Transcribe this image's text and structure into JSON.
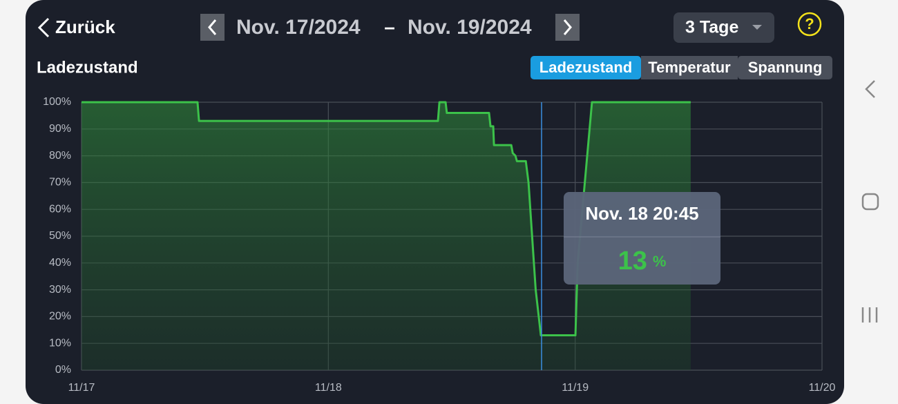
{
  "header": {
    "back": "Zurück",
    "date_from": "Nov. 17/2024",
    "separator": "–",
    "date_to": "Nov. 19/2024",
    "range": "3 Tage",
    "help": "?"
  },
  "tabs": [
    {
      "label": "Ladezustand",
      "active": true
    },
    {
      "label": "Temperatur",
      "active": false
    },
    {
      "label": "Spannung",
      "active": false
    }
  ],
  "chart_data": {
    "type": "area",
    "title": "Ladezustand",
    "color": "#3cc24a",
    "grid": true,
    "x": [
      0,
      0.47,
      0.476,
      1.444,
      1.45,
      1.475,
      1.48,
      1.651,
      1.657,
      1.668,
      1.671,
      1.741,
      1.747,
      1.758,
      1.764,
      1.8,
      1.811,
      1.84,
      1.861,
      2.001,
      2.01,
      2.068,
      2.468
    ],
    "values": [
      100,
      100,
      93,
      93,
      100,
      100,
      96,
      96,
      91,
      91,
      84,
      84,
      81,
      80,
      78,
      78,
      70,
      30,
      13,
      13,
      40,
      100,
      100
    ],
    "xlim": [
      0,
      3
    ],
    "xticks": [
      {
        "value": 0,
        "label": "11/17"
      },
      {
        "value": 1,
        "label": "11/18"
      },
      {
        "value": 2,
        "label": "11/19"
      },
      {
        "value": 3,
        "label": "11/20"
      }
    ],
    "ylim": [
      0,
      100
    ],
    "yticks": [
      {
        "value": 0,
        "label": "0%"
      },
      {
        "value": 10,
        "label": "10%"
      },
      {
        "value": 20,
        "label": "20%"
      },
      {
        "value": 30,
        "label": "30%"
      },
      {
        "value": 40,
        "label": "40%"
      },
      {
        "value": 50,
        "label": "50%"
      },
      {
        "value": 60,
        "label": "60%"
      },
      {
        "value": 70,
        "label": "70%"
      },
      {
        "value": 80,
        "label": "80%"
      },
      {
        "value": 90,
        "label": "90%"
      },
      {
        "value": 100,
        "label": "100%"
      }
    ]
  },
  "tooltip": {
    "title": "Nov. 18 20:45",
    "value": 13,
    "unit": "%"
  }
}
